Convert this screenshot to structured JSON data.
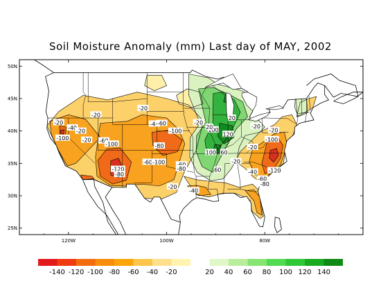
{
  "title": "Soil Moisture Anomaly (mm) Last day of MAY, 2002",
  "map": {
    "lat_labels": [
      "50N",
      "45N",
      "40N",
      "35N",
      "30N",
      "25N"
    ],
    "lon_labels": [
      "120W",
      "100W",
      "80W"
    ],
    "contour_labels": [
      {
        "text": "-20",
        "lon": -122.0,
        "lat": 41.3
      },
      {
        "text": "-40",
        "lon": -119.2,
        "lat": 40.5
      },
      {
        "text": "-20",
        "lon": -117.5,
        "lat": 40.0
      },
      {
        "text": "-20",
        "lon": -114.4,
        "lat": 42.5
      },
      {
        "text": "-100",
        "lon": -121.2,
        "lat": 38.9
      },
      {
        "text": "-20",
        "lon": -116.3,
        "lat": 38.6
      },
      {
        "text": "-60",
        "lon": -112.8,
        "lat": 38.5
      },
      {
        "text": "-100",
        "lon": -111.2,
        "lat": 38.0
      },
      {
        "text": "-20",
        "lon": -104.8,
        "lat": 43.5
      },
      {
        "text": "-40",
        "lon": -102.5,
        "lat": 41.1
      },
      {
        "text": "-60",
        "lon": -101.0,
        "lat": 41.2
      },
      {
        "text": "-100",
        "lon": -98.2,
        "lat": 40.0
      },
      {
        "text": "-80",
        "lon": -101.5,
        "lat": 37.7
      },
      {
        "text": "-60",
        "lon": -103.8,
        "lat": 35.2
      },
      {
        "text": "-100",
        "lon": -101.6,
        "lat": 35.2
      },
      {
        "text": "-120",
        "lon": -109.9,
        "lat": 34.1
      },
      {
        "text": "-80",
        "lon": -109.6,
        "lat": 33.3
      },
      {
        "text": "-60",
        "lon": -97.0,
        "lat": 34.8
      },
      {
        "text": "-80",
        "lon": -97.0,
        "lat": 34.2
      },
      {
        "text": "-20",
        "lon": -98.8,
        "lat": 31.4
      },
      {
        "text": "-40",
        "lon": -94.5,
        "lat": 30.8
      },
      {
        "text": "-20",
        "lon": -93.5,
        "lat": 41.3
      },
      {
        "text": "100",
        "lon": -90.5,
        "lat": 40.2
      },
      {
        "text": "120",
        "lon": -87.5,
        "lat": 39.5
      },
      {
        "text": "100",
        "lon": -91.0,
        "lat": 36.7
      },
      {
        "text": "60",
        "lon": -88.3,
        "lat": 36.7
      },
      {
        "text": "60",
        "lon": -89.6,
        "lat": 34.0
      },
      {
        "text": "-20",
        "lon": -85.9,
        "lat": 35.3
      },
      {
        "text": "-40",
        "lon": -82.5,
        "lat": 33.7
      },
      {
        "text": "-60",
        "lon": -80.5,
        "lat": 32.6
      },
      {
        "text": "-80",
        "lon": -80.0,
        "lat": 31.8
      },
      {
        "text": "-120",
        "lon": -78.0,
        "lat": 33.9
      },
      {
        "text": "-20",
        "lon": -82.5,
        "lat": 37.5
      },
      {
        "text": "-100",
        "lon": -78.6,
        "lat": 38.7
      },
      {
        "text": "-20",
        "lon": -78.2,
        "lat": 40.1
      },
      {
        "text": "-20",
        "lon": -81.8,
        "lat": 40.7
      },
      {
        "text": "20",
        "lon": -86.7,
        "lat": 42.0
      },
      {
        "text": "20",
        "lon": -91.3,
        "lat": 40.6
      }
    ]
  },
  "legend": {
    "labels": [
      "-140",
      "-120",
      "-100",
      "-80",
      "-60",
      "-40",
      "-20",
      "20",
      "40",
      "60",
      "80",
      "100",
      "120",
      "140"
    ],
    "colors": [
      "#e31a1c",
      "#f03b10",
      "#f46d0d",
      "#f98c0a",
      "#fca50a",
      "#fdc64b",
      "#fde08e",
      "#fef3b0",
      "#ffffff",
      "#e0f7c8",
      "#b8ee9b",
      "#86e572",
      "#52da52",
      "#2ec836",
      "#1aaa20",
      "#0f8a14"
    ]
  },
  "colors": {
    "dry_extreme": "#d7301f",
    "dry_strong": "#f06a1a",
    "dry_moderate": "#f9a21f",
    "dry_mild": "#fdd16a",
    "dry_slight": "#fef0a8",
    "wet_slight": "#d9f2c0",
    "wet_moderate": "#7fd672",
    "wet_strong": "#33b23f",
    "wet_extreme": "#138a1e"
  }
}
